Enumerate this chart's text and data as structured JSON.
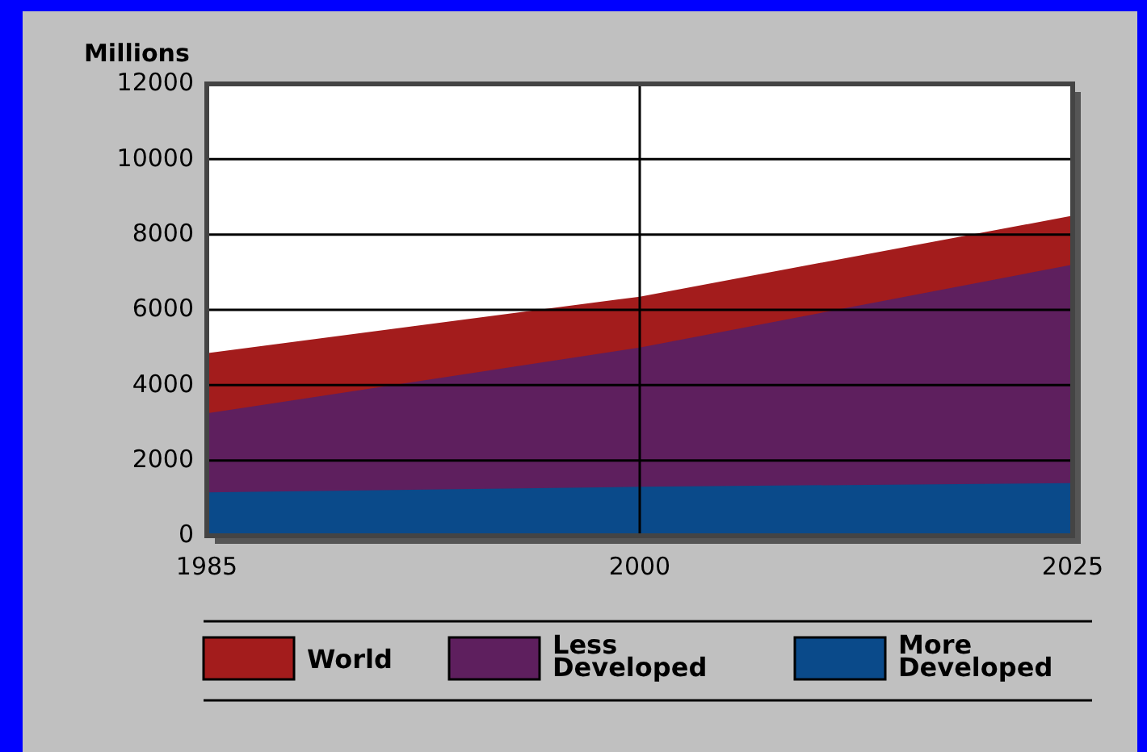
{
  "chart_data": {
    "type": "area",
    "ylabel": "Millions",
    "categories": [
      "1985",
      "2000",
      "2025"
    ],
    "ylim": [
      0,
      12000
    ],
    "yticks": [
      0,
      2000,
      4000,
      6000,
      8000,
      10000,
      12000
    ],
    "grid": true,
    "legend": "bottom",
    "series": [
      {
        "name": "World",
        "color": "#a31c1c",
        "values": [
          4850,
          6350,
          8500
        ]
      },
      {
        "name": "Less Developed",
        "color": "#5e1f5e",
        "values": [
          3250,
          5000,
          7200
        ]
      },
      {
        "name": "More Developed",
        "color": "#0a4a8a",
        "values": [
          1150,
          1300,
          1400
        ]
      }
    ]
  }
}
